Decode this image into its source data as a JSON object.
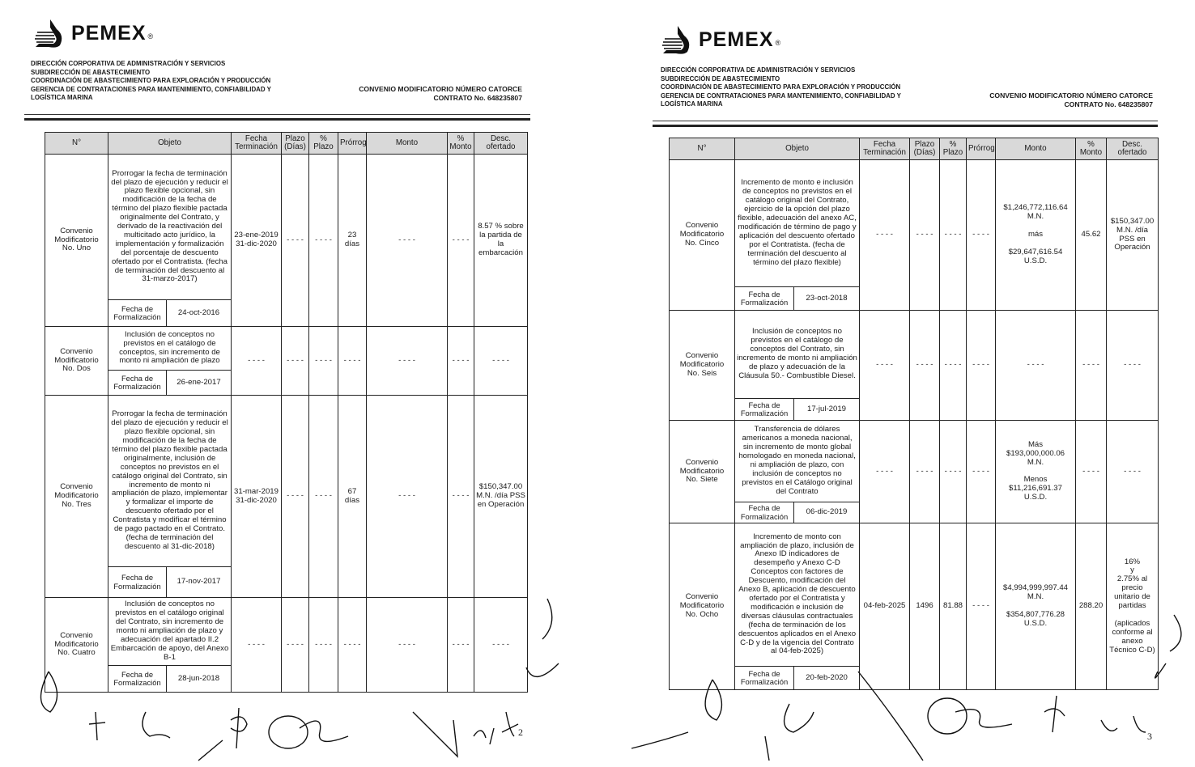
{
  "pages": [
    {
      "brand": "PEMEX",
      "header_lines": [
        "DIRECCIÓN CORPORATIVA DE ADMINISTRACIÓN Y SERVICIOS",
        "SUBDIRECCIÓN DE ABASTECIMIENTO",
        "COORDINACIÓN DE ABASTECIMIENTO PARA EXPLORACIÓN Y PRODUCCIÓN",
        "GERENCIA DE CONTRATACIONES PARA MANTENIMIENTO, CONFIABILIDAD Y",
        "LOGÍSTICA MARINA"
      ],
      "convenio_title": "CONVENIO MODIFICATORIO NÚMERO CATORCE",
      "contract_number": "CONTRATO No. 648235807",
      "page_number": "2",
      "columns": [
        "N°",
        "Objeto",
        "Fecha Terminación",
        "Plazo (Días)",
        "% Plazo",
        "Prórroga",
        "Monto",
        "% Monto",
        "Desc. ofertado"
      ],
      "rows": [
        {
          "numero": "Convenio Modificatorio No. Uno",
          "objeto": "Prorrogar la fecha de terminación del plazo de ejecución y reducir el plazo flexible opcional, sin modificación de la fecha de término del plazo flexible pactada originalmente del Contrato, y derivado de la reactivación del multicitado acto jurídico, la implementación y formalización del porcentaje de descuento ofertado por el Contratista. (fecha de terminación del descuento al 31-marzo-2017)",
          "fecha_formalizacion_label": "Fecha de Formalización",
          "fecha_formalizacion": "24-oct-2016",
          "fecha_terminacion": "23-ene-2019 31-dic-2020",
          "plazo": "- - - -",
          "pct_plazo": "- - - -",
          "prorroga": "23 días",
          "monto": "- - - -",
          "pct_monto": "- - - -",
          "desc": "8.57 % sobre la partida de la embarcación"
        },
        {
          "numero": "Convenio Modificatorio No. Dos",
          "objeto": "Inclusión de conceptos no previstos en el catálogo de conceptos, sin incremento de monto ni ampliación de plazo",
          "fecha_formalizacion_label": "Fecha de Formalización",
          "fecha_formalizacion": "26-ene-2017",
          "fecha_terminacion": "- - - -",
          "plazo": "- - - -",
          "pct_plazo": "- - - -",
          "prorroga": "- - - -",
          "monto": "- - - -",
          "pct_monto": "- - - -",
          "desc": "- - - -"
        },
        {
          "numero": "Convenio Modificatorio No. Tres",
          "objeto": "Prorrogar la fecha de terminación del plazo de ejecución y reducir el plazo flexible opcional, sin modificación de la fecha de término del plazo flexible pactada originalmente, inclusión de conceptos no previstos en el catálogo original del Contrato, sin incremento de monto ni ampliación de plazo, implementar y formalizar el importe de descuento ofertado por el Contratista y modificar el término de pago pactado en el Contrato. (fecha de terminación del descuento al 31-dic-2018)",
          "fecha_formalizacion_label": "Fecha de Formalización",
          "fecha_formalizacion": "17-nov-2017",
          "fecha_terminacion": "31-mar-2019 31-dic-2020",
          "plazo": "- - - -",
          "pct_plazo": "- - - -",
          "prorroga": "67 días",
          "monto": "- - - -",
          "pct_monto": "- - - -",
          "desc": "$150,347.00 M.N. /día PSS en Operación"
        },
        {
          "numero": "Convenio Modificatorio No. Cuatro",
          "objeto": "Inclusión de conceptos no previstos en el catálogo original del Contrato, sin incremento de monto ni ampliación de plazo y adecuación del apartado II.2 Embarcación de apoyo, del Anexo B-1",
          "fecha_formalizacion_label": "Fecha de Formalización",
          "fecha_formalizacion": "28-jun-2018",
          "fecha_terminacion": "- - - -",
          "plazo": "- - - -",
          "pct_plazo": "- - - -",
          "prorroga": "- - - -",
          "monto": "- - - -",
          "pct_monto": "- - - -",
          "desc": "- - - -"
        }
      ]
    },
    {
      "brand": "PEMEX",
      "header_lines": [
        "DIRECCIÓN CORPORATIVA DE ADMINISTRACIÓN Y SERVICIOS",
        "SUBDIRECCIÓN DE ABASTECIMIENTO",
        "COORDINACIÓN DE ABASTECIMIENTO PARA EXPLORACIÓN Y PRODUCCIÓN",
        "GERENCIA DE CONTRATACIONES PARA MANTENIMIENTO, CONFIABILIDAD Y",
        "LOGÍSTICA MARINA"
      ],
      "convenio_title": "CONVENIO MODIFICATORIO NÚMERO CATORCE",
      "contract_number": "CONTRATO No. 648235807",
      "page_number": "3",
      "columns": [
        "N°",
        "Objeto",
        "Fecha Terminación",
        "Plazo (Días)",
        "% Plazo",
        "Prórroga",
        "Monto",
        "% Monto",
        "Desc. ofertado"
      ],
      "rows": [
        {
          "numero": "Convenio Modificatorio No. Cinco",
          "objeto": "Incremento de monto e inclusión de conceptos no previstos en el catálogo original del Contrato, ejercicio de la opción del plazo flexible, adecuación del anexo AC, modificación de término de pago y aplicación del descuento ofertado por el Contratista. (fecha de terminación del descuento al término del plazo flexible)",
          "fecha_formalizacion_label": "Fecha de Formalización",
          "fecha_formalizacion": "23-oct-2018",
          "fecha_terminacion": "- - - -",
          "plazo": "- - - -",
          "pct_plazo": "- - - -",
          "prorroga": "- - - -",
          "monto": "$1,246,772,116.64 M.N.\n\nmás\n\n$29,647,616.54 U.S.D.",
          "pct_monto": "45.62",
          "desc": "$150,347.00 M.N. /día PSS en Operación"
        },
        {
          "numero": "Convenio Modificatorio No. Seis",
          "objeto": "Inclusión de conceptos no previstos en el catálogo de conceptos del Contrato, sin incremento de monto ni ampliación de plazo y adecuación de la Cláusula 50.- Combustible Diesel.",
          "fecha_formalizacion_label": "Fecha de Formalización",
          "fecha_formalizacion": "17-jul-2019",
          "fecha_terminacion": "- - - -",
          "plazo": "- - - -",
          "pct_plazo": "- - - -",
          "prorroga": "- - - -",
          "monto": "- - - -",
          "pct_monto": "- - - -",
          "desc": "- - - -"
        },
        {
          "numero": "Convenio Modificatorio No. Siete",
          "objeto": "Transferencia de dólares americanos a moneda nacional, sin incremento de monto global homologado en moneda nacional, ni ampliación de plazo, con inclusión de conceptos no previstos en el Catálogo original del Contrato",
          "fecha_formalizacion_label": "Fecha de Formalización",
          "fecha_formalizacion": "06-dic-2019",
          "fecha_terminacion": "- - - -",
          "plazo": "- - - -",
          "pct_plazo": "- - - -",
          "prorroga": "- - - -",
          "monto": "Más\n$193,000,000.06 M.N.\n\nMenos\n$11,216,691.37 U.S.D.",
          "pct_monto": "- - - -",
          "desc": "- - - -"
        },
        {
          "numero": "Convenio Modificatorio No. Ocho",
          "objeto": "Incremento de monto con ampliación de plazo, inclusión de Anexo ID indicadores de desempeño y Anexo C-D Conceptos con factores de Descuento, modificación del Anexo B, aplicación de descuento ofertado por el Contratista y modificación e inclusión de diversas cláusulas contractuales (fecha de terminación de los descuentos aplicados en el Anexo C-D y de la vigencia del Contrato al 04-feb-2025)",
          "fecha_formalizacion_label": "Fecha de Formalización",
          "fecha_formalizacion": "20-feb-2020",
          "fecha_terminacion": "04-feb-2025",
          "plazo": "1496",
          "pct_plazo": "81.88",
          "prorroga": "- - - -",
          "monto": "$4,994,999,997.44 M.N.\n\n$354,807,776.28 U.S.D.",
          "pct_monto": "288.20",
          "desc": "16%\ny\n2.75% al precio unitario de partidas\n\n(aplicados conforme al anexo Técnico C-D)"
        }
      ]
    }
  ]
}
